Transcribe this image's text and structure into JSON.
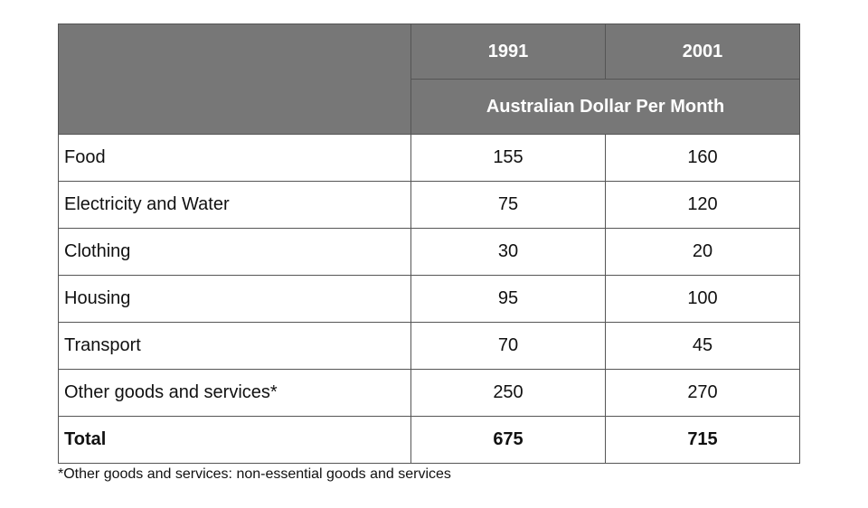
{
  "chart_data": {
    "type": "table",
    "title": "",
    "columns": [
      "1991",
      "2001"
    ],
    "unit_label": "Australian Dollar Per Month",
    "rows": [
      {
        "label": "Food",
        "values": [
          "155",
          "160"
        ]
      },
      {
        "label": "Electricity and Water",
        "values": [
          "75",
          "120"
        ]
      },
      {
        "label": "Clothing",
        "values": [
          "30",
          "20"
        ]
      },
      {
        "label": "Housing",
        "values": [
          "95",
          "100"
        ]
      },
      {
        "label": "Transport",
        "values": [
          "70",
          "45"
        ]
      },
      {
        "label": "Other goods and services*",
        "values": [
          "250",
          "270"
        ]
      }
    ],
    "total": {
      "label": "Total",
      "values": [
        "675",
        "715"
      ]
    },
    "footnote": "*Other goods and services: non-essential goods and services"
  }
}
